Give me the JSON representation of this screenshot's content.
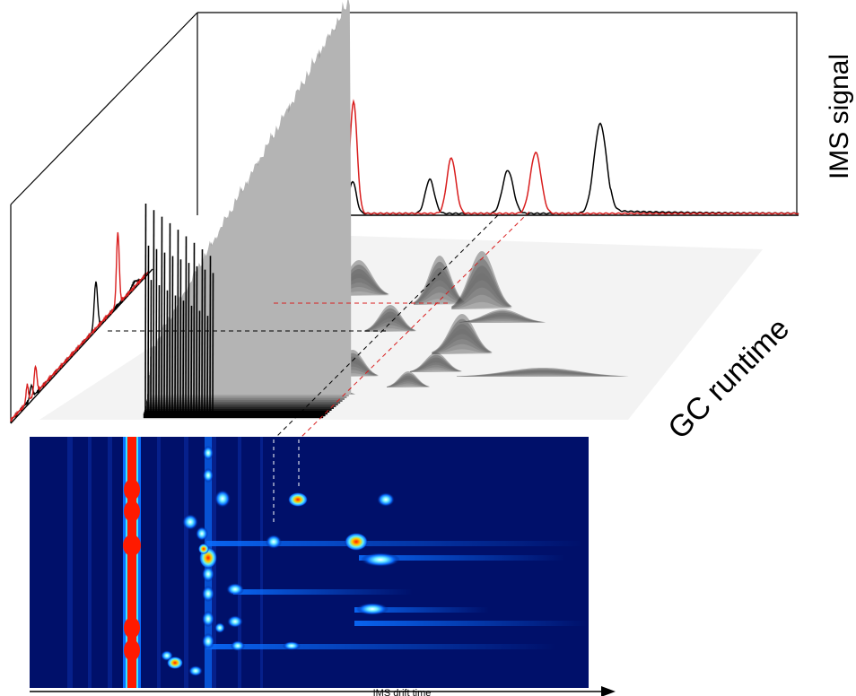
{
  "labels": {
    "ims_signal": "IMS signal",
    "gc_runtime": "GC runtime",
    "ims_drift_time": "IMS drift time"
  },
  "colors": {
    "trace_black": "#000000",
    "trace_red": "#d91e1e",
    "heatmap_background": "#00106a",
    "heatmap_hot": "#ff1a00"
  }
}
